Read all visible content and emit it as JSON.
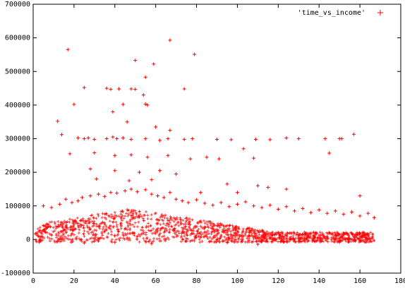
{
  "chart_data": {
    "type": "scatter",
    "title": "",
    "xlabel": "",
    "ylabel": "",
    "xlim": [
      0,
      180
    ],
    "ylim": [
      -100000,
      700000
    ],
    "x_ticks": [
      "0",
      "20",
      "40",
      "60",
      "80",
      "100",
      "120",
      "140",
      "160",
      "180"
    ],
    "y_ticks": [
      "-100000",
      "0",
      "100000",
      "200000",
      "300000",
      "400000",
      "500000",
      "600000",
      "700000"
    ],
    "grid": false,
    "legend": "top-right",
    "marker": "plus",
    "color": "#ff0000",
    "series": [
      {
        "name": "'time_vs_income'",
        "points": [
          [
            17,
            565000
          ],
          [
            67,
            593000
          ],
          [
            79,
            551000
          ],
          [
            50,
            533000
          ],
          [
            59,
            522000
          ],
          [
            55,
            483000
          ],
          [
            74,
            448000
          ],
          [
            25,
            452000
          ],
          [
            36,
            450000
          ],
          [
            38,
            447000
          ],
          [
            42,
            448000
          ],
          [
            48,
            448000
          ],
          [
            50,
            447000
          ],
          [
            54,
            430000
          ],
          [
            20,
            402000
          ],
          [
            39,
            380000
          ],
          [
            44,
            402000
          ],
          [
            55,
            403000
          ],
          [
            56,
            400000
          ],
          [
            46,
            350000
          ],
          [
            60,
            335000
          ],
          [
            67,
            325000
          ],
          [
            12,
            352000
          ],
          [
            14,
            312000
          ],
          [
            22,
            302000
          ],
          [
            25,
            300000
          ],
          [
            27,
            302000
          ],
          [
            30,
            298000
          ],
          [
            36,
            300000
          ],
          [
            39,
            305000
          ],
          [
            41,
            300000
          ],
          [
            44,
            302000
          ],
          [
            48,
            298000
          ],
          [
            55,
            300000
          ],
          [
            62,
            295000
          ],
          [
            66,
            300000
          ],
          [
            74,
            298000
          ],
          [
            78,
            300000
          ],
          [
            90,
            298000
          ],
          [
            97,
            297000
          ],
          [
            103,
            270000
          ],
          [
            109,
            298000
          ],
          [
            116,
            297000
          ],
          [
            124,
            302000
          ],
          [
            130,
            300000
          ],
          [
            143,
            300000
          ],
          [
            145,
            257000
          ],
          [
            150,
            300000
          ],
          [
            151,
            300000
          ],
          [
            157,
            313000
          ],
          [
            18,
            255000
          ],
          [
            30,
            258000
          ],
          [
            40,
            250000
          ],
          [
            48,
            252000
          ],
          [
            56,
            245000
          ],
          [
            66,
            250000
          ],
          [
            77,
            240000
          ],
          [
            85,
            245000
          ],
          [
            91,
            240000
          ],
          [
            108,
            242000
          ],
          [
            28,
            210000
          ],
          [
            40,
            205000
          ],
          [
            52,
            200000
          ],
          [
            62,
            205000
          ],
          [
            70,
            195000
          ],
          [
            31,
            180000
          ],
          [
            47,
            175000
          ],
          [
            58,
            178000
          ],
          [
            95,
            165000
          ],
          [
            110,
            160000
          ],
          [
            115,
            155000
          ],
          [
            124,
            150000
          ],
          [
            82,
            140000
          ],
          [
            100,
            140000
          ],
          [
            160,
            130000
          ],
          [
            5,
            100000
          ],
          [
            9,
            95000
          ],
          [
            13,
            105000
          ],
          [
            16,
            120000
          ],
          [
            19,
            110000
          ],
          [
            22,
            115000
          ],
          [
            24,
            125000
          ],
          [
            28,
            130000
          ],
          [
            32,
            135000
          ],
          [
            35,
            128000
          ],
          [
            38,
            140000
          ],
          [
            41,
            138000
          ],
          [
            45,
            145000
          ],
          [
            48,
            150000
          ],
          [
            51,
            142000
          ],
          [
            55,
            148000
          ],
          [
            58,
            135000
          ],
          [
            61,
            130000
          ],
          [
            64,
            125000
          ],
          [
            67,
            140000
          ],
          [
            70,
            120000
          ],
          [
            73,
            115000
          ],
          [
            76,
            110000
          ],
          [
            80,
            118000
          ],
          [
            84,
            108000
          ],
          [
            88,
            102000
          ],
          [
            92,
            110000
          ],
          [
            96,
            98000
          ],
          [
            100,
            105000
          ],
          [
            104,
            112000
          ],
          [
            108,
            100000
          ],
          [
            112,
            95000
          ],
          [
            116,
            102000
          ],
          [
            120,
            90000
          ],
          [
            124,
            98000
          ],
          [
            128,
            85000
          ],
          [
            132,
            92000
          ],
          [
            136,
            80000
          ],
          [
            140,
            88000
          ],
          [
            144,
            78000
          ],
          [
            148,
            85000
          ],
          [
            152,
            75000
          ],
          [
            156,
            82000
          ],
          [
            160,
            70000
          ],
          [
            164,
            78000
          ],
          [
            167,
            65000
          ],
          [
            3,
            -8000
          ],
          [
            12,
            -5000
          ],
          [
            25,
            -10000
          ],
          [
            40,
            -8000
          ],
          [
            58,
            -12000
          ],
          [
            75,
            -5000
          ],
          [
            95,
            -9000
          ],
          [
            110,
            -14000
          ],
          [
            130,
            -6000
          ],
          [
            150,
            -8000
          ]
        ]
      }
    ]
  }
}
